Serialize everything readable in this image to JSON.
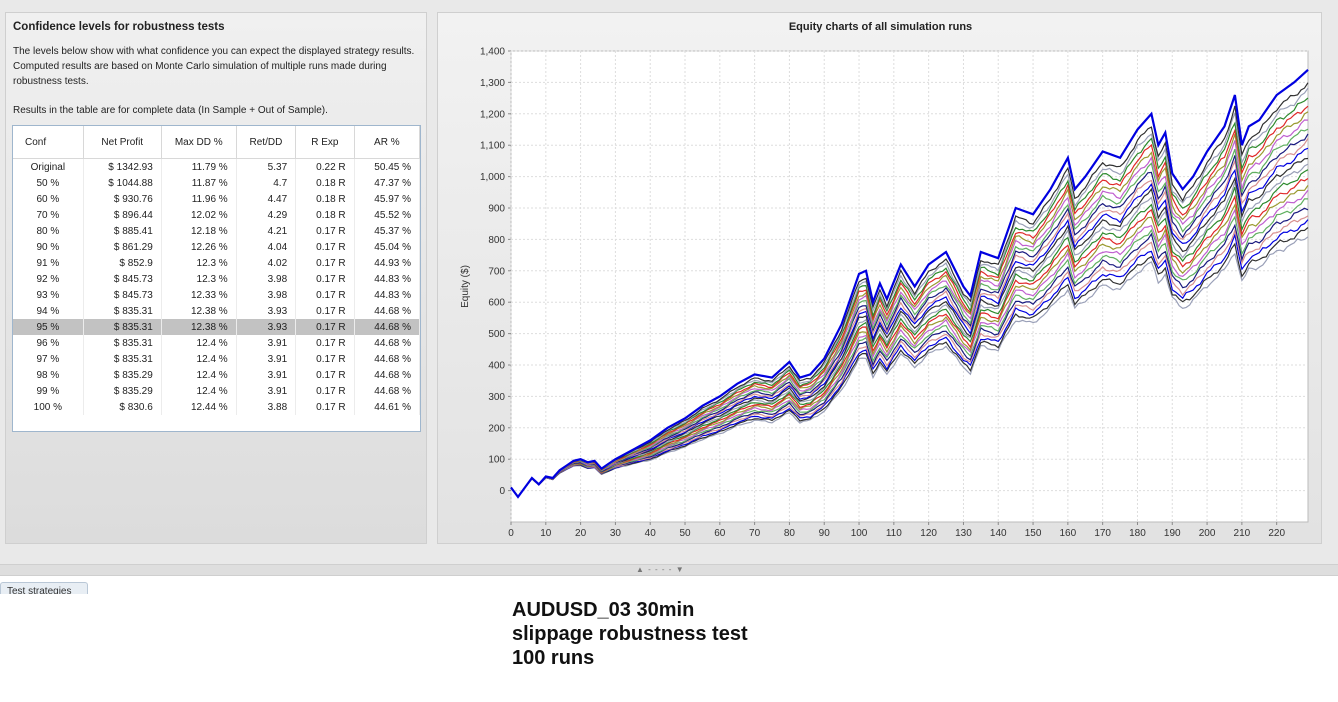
{
  "left_panel": {
    "title": "Confidence levels for robustness tests",
    "description": "The levels below show with what confidence you can expect the displayed strategy results. Computed results are based on Monte Carlo simulation of multiple runs made during robustness tests.",
    "note": "Results in the table are for complete data (In Sample + Out of Sample).",
    "table": {
      "headers": [
        "Conf",
        "Net Profit",
        "Max DD %",
        "Ret/DD",
        "R Exp",
        "AR %"
      ],
      "selected_row": 5,
      "rows": [
        [
          "Original",
          "$ 1342.93",
          "11.79 %",
          "5.37",
          "0.22 R",
          "50.45 %"
        ],
        [
          "50 %",
          "$ 1044.88",
          "11.87 %",
          "4.7",
          "0.18 R",
          "47.37 %"
        ],
        [
          "60 %",
          "$ 930.76",
          "11.96 %",
          "4.47",
          "0.18 R",
          "45.97 %"
        ],
        [
          "70 %",
          "$ 896.44",
          "12.02 %",
          "4.29",
          "0.18 R",
          "45.52 %"
        ],
        [
          "80 %",
          "$ 885.41",
          "12.18 %",
          "4.21",
          "0.17 R",
          "45.37 %"
        ],
        [
          "90 %",
          "$ 861.29",
          "12.26 %",
          "4.04",
          "0.17 R",
          "45.04 %"
        ],
        [
          "91 %",
          "$ 852.9",
          "12.3 %",
          "4.02",
          "0.17 R",
          "44.93 %"
        ],
        [
          "92 %",
          "$ 845.73",
          "12.3 %",
          "3.98",
          "0.17 R",
          "44.83 %"
        ],
        [
          "93 %",
          "$ 845.73",
          "12.33 %",
          "3.98",
          "0.17 R",
          "44.83 %"
        ],
        [
          "94 %",
          "$ 835.31",
          "12.38 %",
          "3.93",
          "0.17 R",
          "44.68 %"
        ],
        [
          "95 %",
          "$ 835.31",
          "12.38 %",
          "3.93",
          "0.17 R",
          "44.68 %"
        ],
        [
          "96 %",
          "$ 835.31",
          "12.4 %",
          "3.91",
          "0.17 R",
          "44.68 %"
        ],
        [
          "97 %",
          "$ 835.31",
          "12.4 %",
          "3.91",
          "0.17 R",
          "44.68 %"
        ],
        [
          "98 %",
          "$ 835.29",
          "12.4 %",
          "3.91",
          "0.17 R",
          "44.68 %"
        ],
        [
          "99 %",
          "$ 835.29",
          "12.4 %",
          "3.91",
          "0.17 R",
          "44.68 %"
        ],
        [
          "100 %",
          "$ 830.6",
          "12.44 %",
          "3.88",
          "0.17 R",
          "44.61 %"
        ]
      ]
    }
  },
  "chart_data": {
    "type": "line",
    "title": "Equity charts of all simulation runs",
    "xlabel": "",
    "ylabel": "Equity ($)",
    "xlim": [
      0,
      229
    ],
    "ylim": [
      -100,
      1400
    ],
    "xticks": [
      0,
      10,
      20,
      30,
      40,
      50,
      60,
      70,
      80,
      90,
      100,
      110,
      120,
      130,
      140,
      150,
      160,
      170,
      180,
      190,
      200,
      210,
      220
    ],
    "yticks": [
      0,
      100,
      200,
      300,
      400,
      500,
      600,
      700,
      800,
      900,
      1000,
      1100,
      1200,
      1300,
      1400
    ],
    "ytick_labels": [
      "0",
      "100",
      "200",
      "300",
      "400",
      "500",
      "600",
      "700",
      "800",
      "900",
      "1,000",
      "1,100",
      "1,200",
      "1,300",
      "1,400"
    ],
    "grid": true,
    "legend": "none",
    "series_colors": [
      "#0000e0",
      "#303030",
      "#9aa0b8",
      "#2d8a2d",
      "#e02828",
      "#9a9a30",
      "#c060d0",
      "#60b060",
      "#1a1a80",
      "#d89090"
    ],
    "original_series": {
      "x": [
        0,
        2,
        4,
        6,
        8,
        10,
        12,
        14,
        16,
        18,
        20,
        22,
        24,
        26,
        28,
        30,
        35,
        40,
        45,
        50,
        55,
        60,
        65,
        70,
        75,
        80,
        83,
        86,
        90,
        95,
        100,
        102,
        104,
        106,
        108,
        112,
        116,
        120,
        125,
        130,
        132,
        135,
        140,
        145,
        150,
        155,
        160,
        162,
        165,
        170,
        175,
        180,
        184,
        186,
        188,
        190,
        193,
        196,
        200,
        205,
        208,
        210,
        212,
        215,
        220,
        225,
        229
      ],
      "y": [
        10,
        -20,
        10,
        40,
        20,
        45,
        40,
        65,
        80,
        95,
        100,
        90,
        95,
        70,
        85,
        100,
        130,
        160,
        200,
        230,
        270,
        300,
        340,
        370,
        360,
        410,
        360,
        370,
        420,
        530,
        690,
        700,
        600,
        660,
        610,
        720,
        650,
        720,
        760,
        650,
        620,
        760,
        740,
        900,
        880,
        960,
        1060,
        960,
        1000,
        1080,
        1060,
        1150,
        1200,
        1100,
        1140,
        1010,
        960,
        1000,
        1080,
        1160,
        1260,
        1100,
        1160,
        1180,
        1260,
        1300,
        1340
      ]
    },
    "runs": 100,
    "worst_final_equity": 830.6
  },
  "splitter": {
    "handle": "▲ - - - - ▼"
  },
  "bottom_tab": {
    "label": "Test strategies"
  },
  "caption": {
    "line1": "AUDUSD_03 30min",
    "line2": "slippage robustness test",
    "line3": "100 runs"
  }
}
